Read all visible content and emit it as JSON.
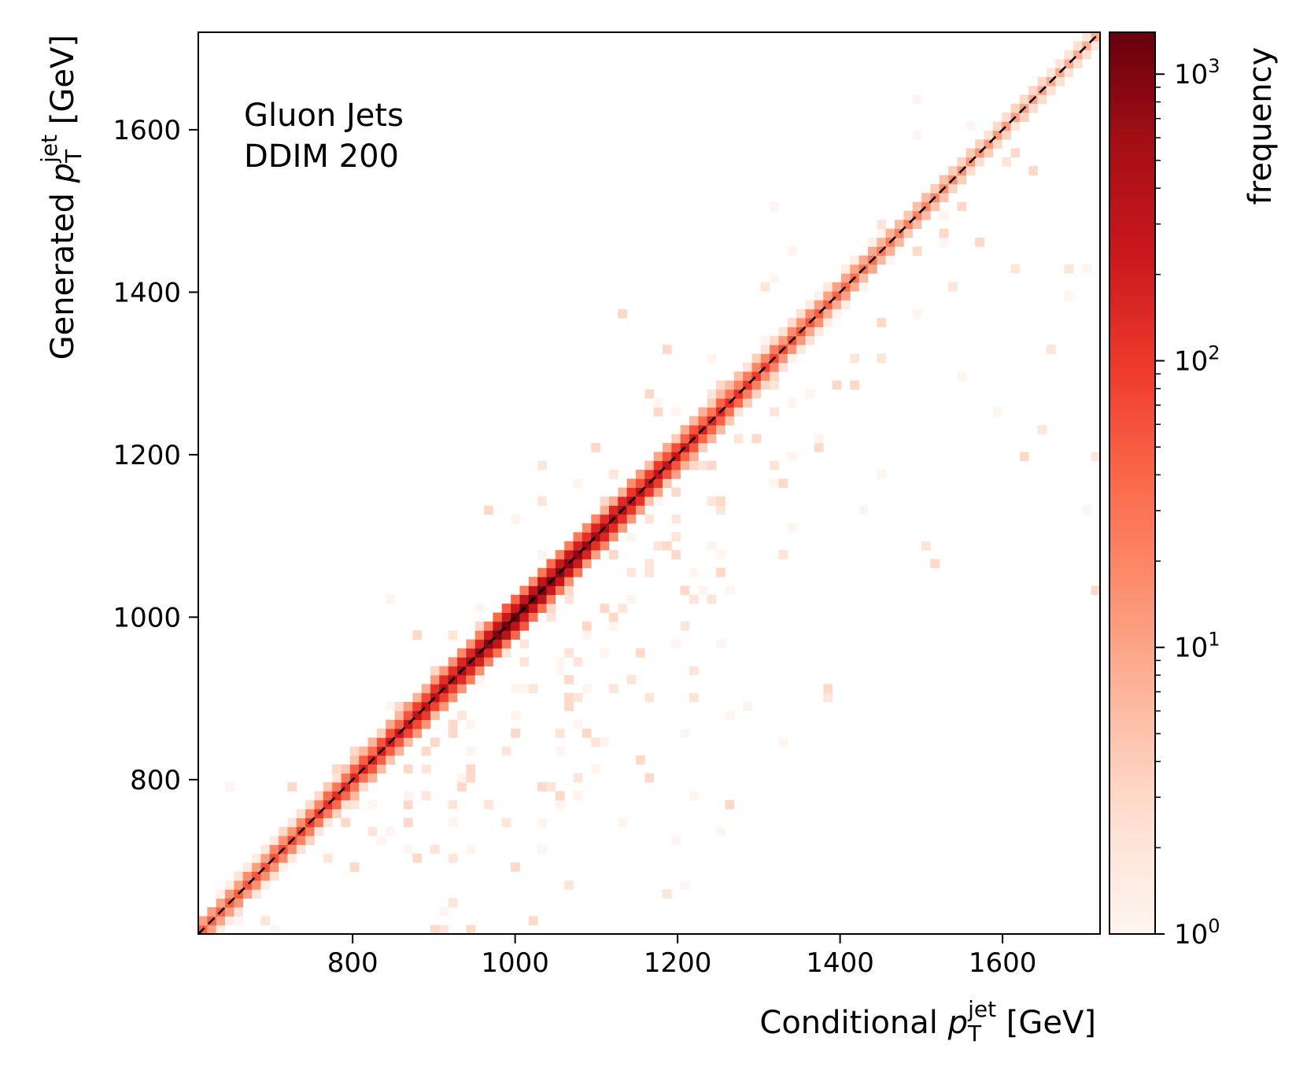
{
  "chart_data": {
    "type": "heatmap",
    "annotation": [
      "Gluon Jets",
      "DDIM 200"
    ],
    "xlabel": {
      "main": "Conditional ",
      "var": "p",
      "sub": "T",
      "sup": "jet",
      "unit": " [GeV]"
    },
    "ylabel": {
      "main": "Generated ",
      "var": "p",
      "sub": "T",
      "sup": "jet",
      "unit": " [GeV]"
    },
    "xlim": [
      610,
      1720
    ],
    "ylim": [
      610,
      1720
    ],
    "xticks": [
      800,
      1000,
      1200,
      1400,
      1600
    ],
    "yticks": [
      800,
      1000,
      1200,
      1400,
      1600
    ],
    "grid": false,
    "bin_width": 11,
    "reference_line": {
      "style": "dashed",
      "color": "#000000",
      "from": [
        610,
        610
      ],
      "to": [
        1720,
        1720
      ]
    },
    "diagonal_band_frequency": [
      {
        "x": 620,
        "y": 620,
        "value": 40
      },
      {
        "x": 700,
        "y": 700,
        "value": 60
      },
      {
        "x": 800,
        "y": 800,
        "value": 150
      },
      {
        "x": 900,
        "y": 900,
        "value": 350
      },
      {
        "x": 960,
        "y": 960,
        "value": 800
      },
      {
        "x": 1000,
        "y": 1000,
        "value": 1300
      },
      {
        "x": 1050,
        "y": 1050,
        "value": 1000
      },
      {
        "x": 1100,
        "y": 1100,
        "value": 600
      },
      {
        "x": 1200,
        "y": 1200,
        "value": 250
      },
      {
        "x": 1300,
        "y": 1300,
        "value": 90
      },
      {
        "x": 1400,
        "y": 1400,
        "value": 40
      },
      {
        "x": 1500,
        "y": 1500,
        "value": 20
      },
      {
        "x": 1600,
        "y": 1600,
        "value": 12
      },
      {
        "x": 1700,
        "y": 1700,
        "value": 8
      }
    ],
    "colorbar": {
      "label": "frequency",
      "scale": "log",
      "range": [
        1,
        1400
      ],
      "colormap": "Reds",
      "ticks": [
        {
          "value": 1,
          "base": "10",
          "exp": "0"
        },
        {
          "value": 10,
          "base": "10",
          "exp": "1"
        },
        {
          "value": 100,
          "base": "10",
          "exp": "2"
        },
        {
          "value": 1000,
          "base": "10",
          "exp": "3"
        }
      ],
      "colors": [
        "#fff5f0",
        "#fee0d2",
        "#fcbba1",
        "#fc9272",
        "#fb6a4a",
        "#ef3b2c",
        "#cb181d",
        "#a50f15",
        "#67000d"
      ]
    }
  }
}
